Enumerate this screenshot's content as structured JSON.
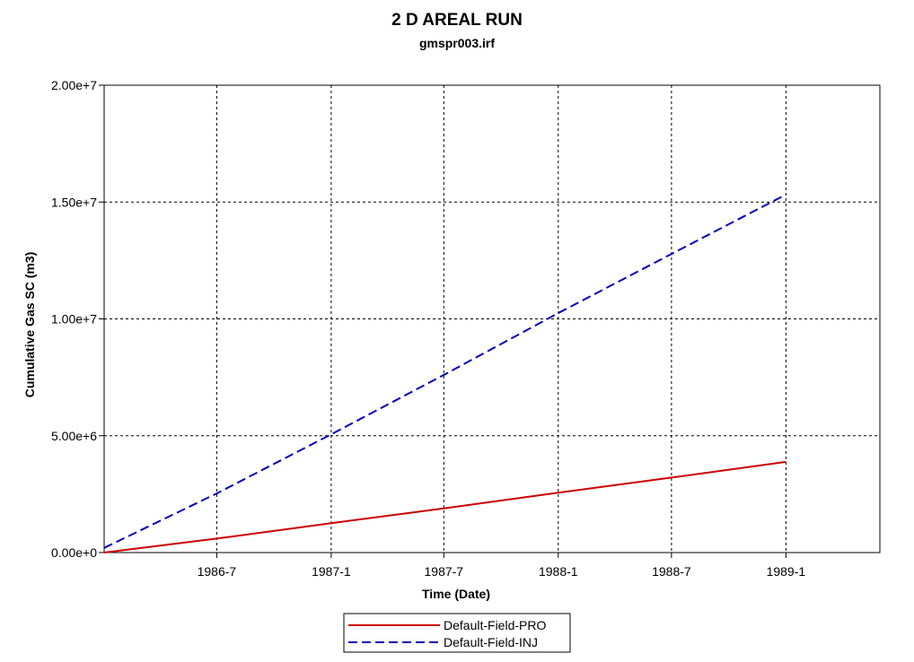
{
  "chart_data": {
    "type": "line",
    "title": "2 D AREAL RUN",
    "subtitle": "gmspr003.irf",
    "xlabel": "Time (Date)",
    "ylabel": "Cumulative Gas SC (m3)",
    "x_axis_type": "date",
    "xlim": [
      "1986-01-01",
      "1989-06-01"
    ],
    "ylim": [
      0,
      20000000
    ],
    "x_ticks": [
      {
        "date": "1986-07-01",
        "label": "1986-7"
      },
      {
        "date": "1987-01-01",
        "label": "1987-1"
      },
      {
        "date": "1987-07-01",
        "label": "1987-7"
      },
      {
        "date": "1988-01-01",
        "label": "1988-1"
      },
      {
        "date": "1988-07-01",
        "label": "1988-7"
      },
      {
        "date": "1989-01-01",
        "label": "1989-1"
      }
    ],
    "y_ticks": [
      {
        "value": 0,
        "label": "0.00e+0"
      },
      {
        "value": 5000000,
        "label": "5.00e+6"
      },
      {
        "value": 10000000,
        "label": "1.00e+7"
      },
      {
        "value": 15000000,
        "label": "1.50e+7"
      },
      {
        "value": 20000000,
        "label": "2.00e+7"
      }
    ],
    "grid": true,
    "legend_position": "bottom-center",
    "series": [
      {
        "name": "Default-Field-PRO",
        "color": "#cc0000",
        "dash": "solid",
        "points": [
          {
            "x": "1986-01-01",
            "y": 0
          },
          {
            "x": "1986-07-01",
            "y": 600000
          },
          {
            "x": "1987-01-01",
            "y": 1260000
          },
          {
            "x": "1987-07-01",
            "y": 1890000
          },
          {
            "x": "1988-01-01",
            "y": 2560000
          },
          {
            "x": "1988-07-01",
            "y": 3210000
          },
          {
            "x": "1989-01-01",
            "y": 3880000
          }
        ]
      },
      {
        "name": "Default-Field-INJ",
        "color": "#0000bb",
        "dash": "dashed",
        "points": [
          {
            "x": "1986-01-01",
            "y": 200000
          },
          {
            "x": "1986-07-01",
            "y": 2530000
          },
          {
            "x": "1987-01-01",
            "y": 5060000
          },
          {
            "x": "1987-07-01",
            "y": 7600000
          },
          {
            "x": "1988-01-01",
            "y": 10250000
          },
          {
            "x": "1988-07-01",
            "y": 12780000
          },
          {
            "x": "1989-01-01",
            "y": 15320000
          }
        ]
      }
    ]
  }
}
